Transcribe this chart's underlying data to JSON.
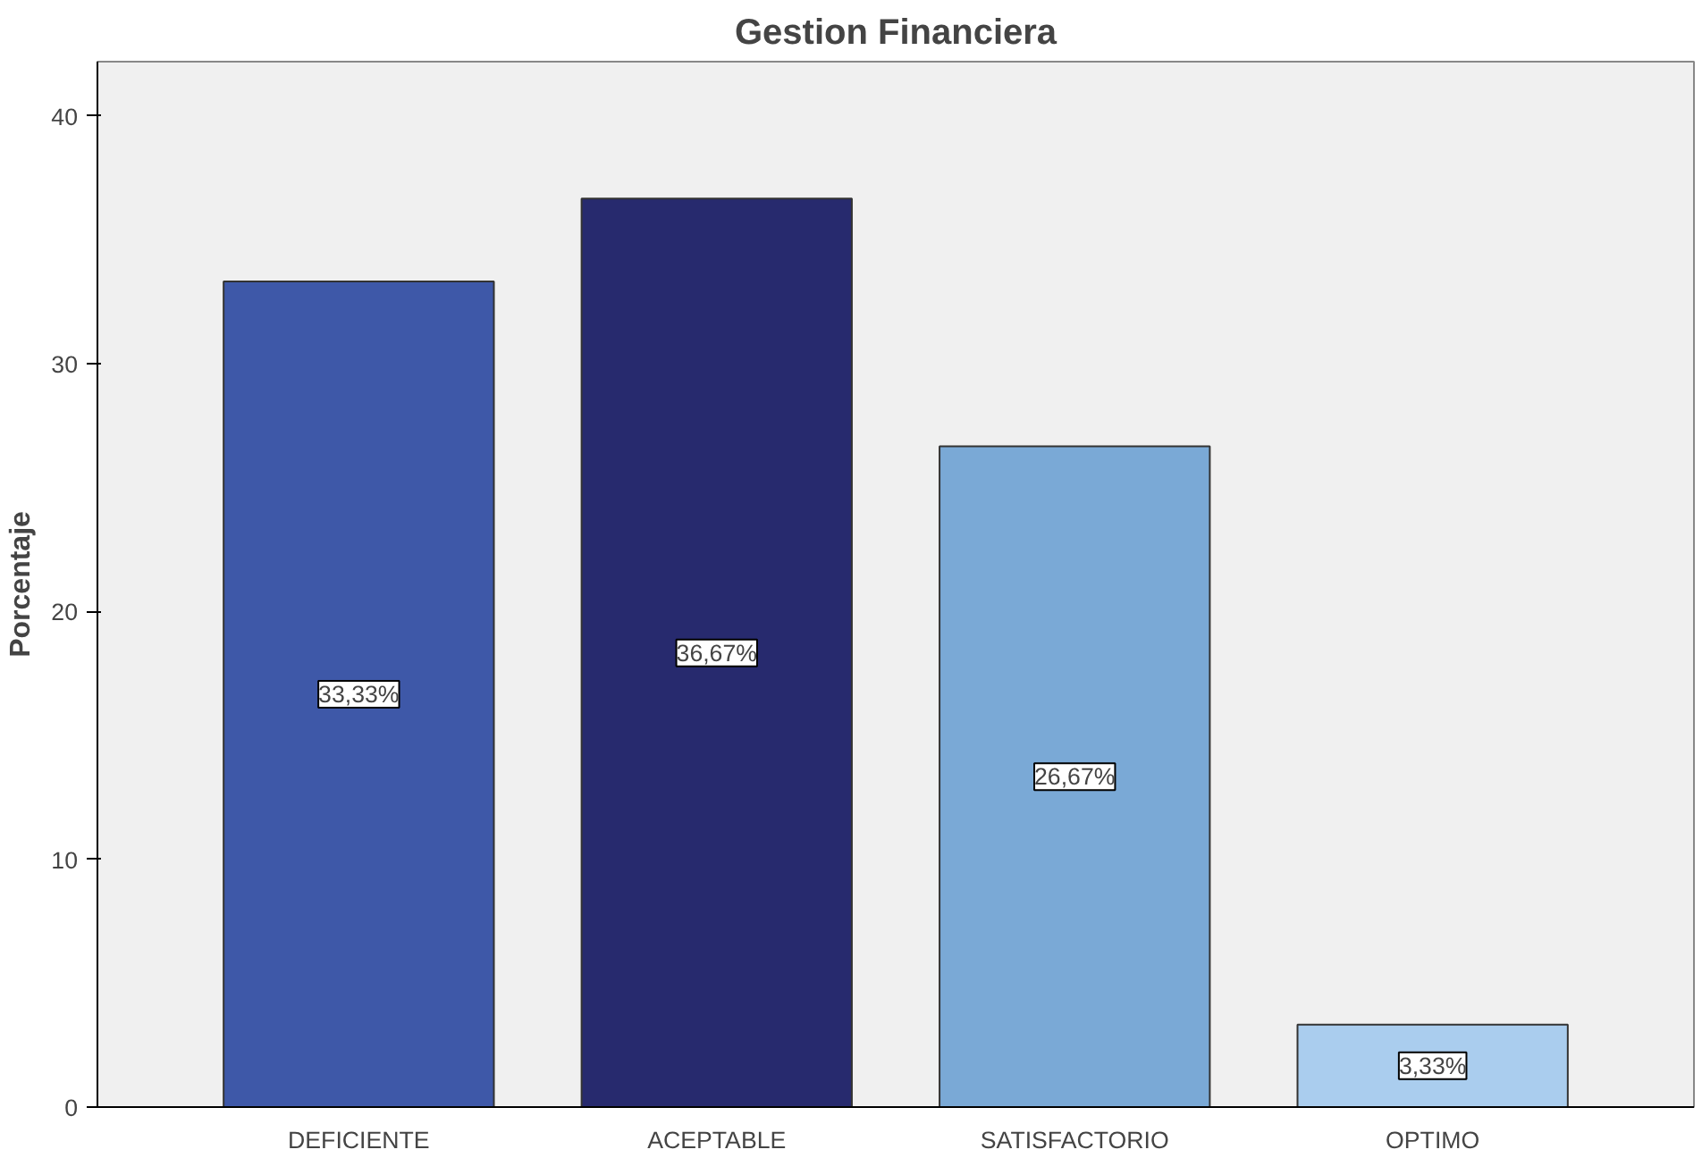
{
  "chart_data": {
    "type": "bar",
    "title": "Gestion Financiera",
    "ylabel": "Porcentaje",
    "categories": [
      "DEFICIENTE",
      "ACEPTABLE",
      "SATISFACTORIO",
      "OPTIMO"
    ],
    "values": [
      33.33,
      36.67,
      26.67,
      3.33
    ],
    "colors": [
      "#3e58a8",
      "#272a6e",
      "#7aa9d6",
      "#aacdee"
    ],
    "value_labels": [
      "33,33%",
      "36,67%",
      "26,67%",
      "3,33%"
    ],
    "ylim": [
      0,
      42.2
    ],
    "yticks": [
      0,
      10,
      20,
      30,
      40
    ],
    "grid": false
  }
}
